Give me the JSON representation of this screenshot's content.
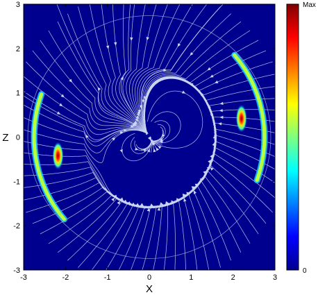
{
  "chart_data": {
    "type": "heatmap",
    "title": "",
    "xlabel": "X",
    "ylabel": "Z",
    "xlim": [
      -3,
      3
    ],
    "ylim": [
      -3,
      3
    ],
    "x_ticks": [
      "-3",
      "-2",
      "-1",
      "0",
      "1",
      "2",
      "3"
    ],
    "y_ticks": [
      "3",
      "2",
      "1",
      "0",
      "-1",
      "-2",
      "-3"
    ],
    "colorbar": {
      "max_label": "Max",
      "min_label": "0",
      "colormap": "jet"
    },
    "background_color": "#00008f",
    "streamline_color": "#c8d4f0",
    "circle_radius": 2.9,
    "hotspots": [
      {
        "x": -2.18,
        "z": -0.42,
        "intensity": 1.0
      },
      {
        "x": 2.2,
        "z": 0.42,
        "intensity": 1.0
      }
    ]
  }
}
